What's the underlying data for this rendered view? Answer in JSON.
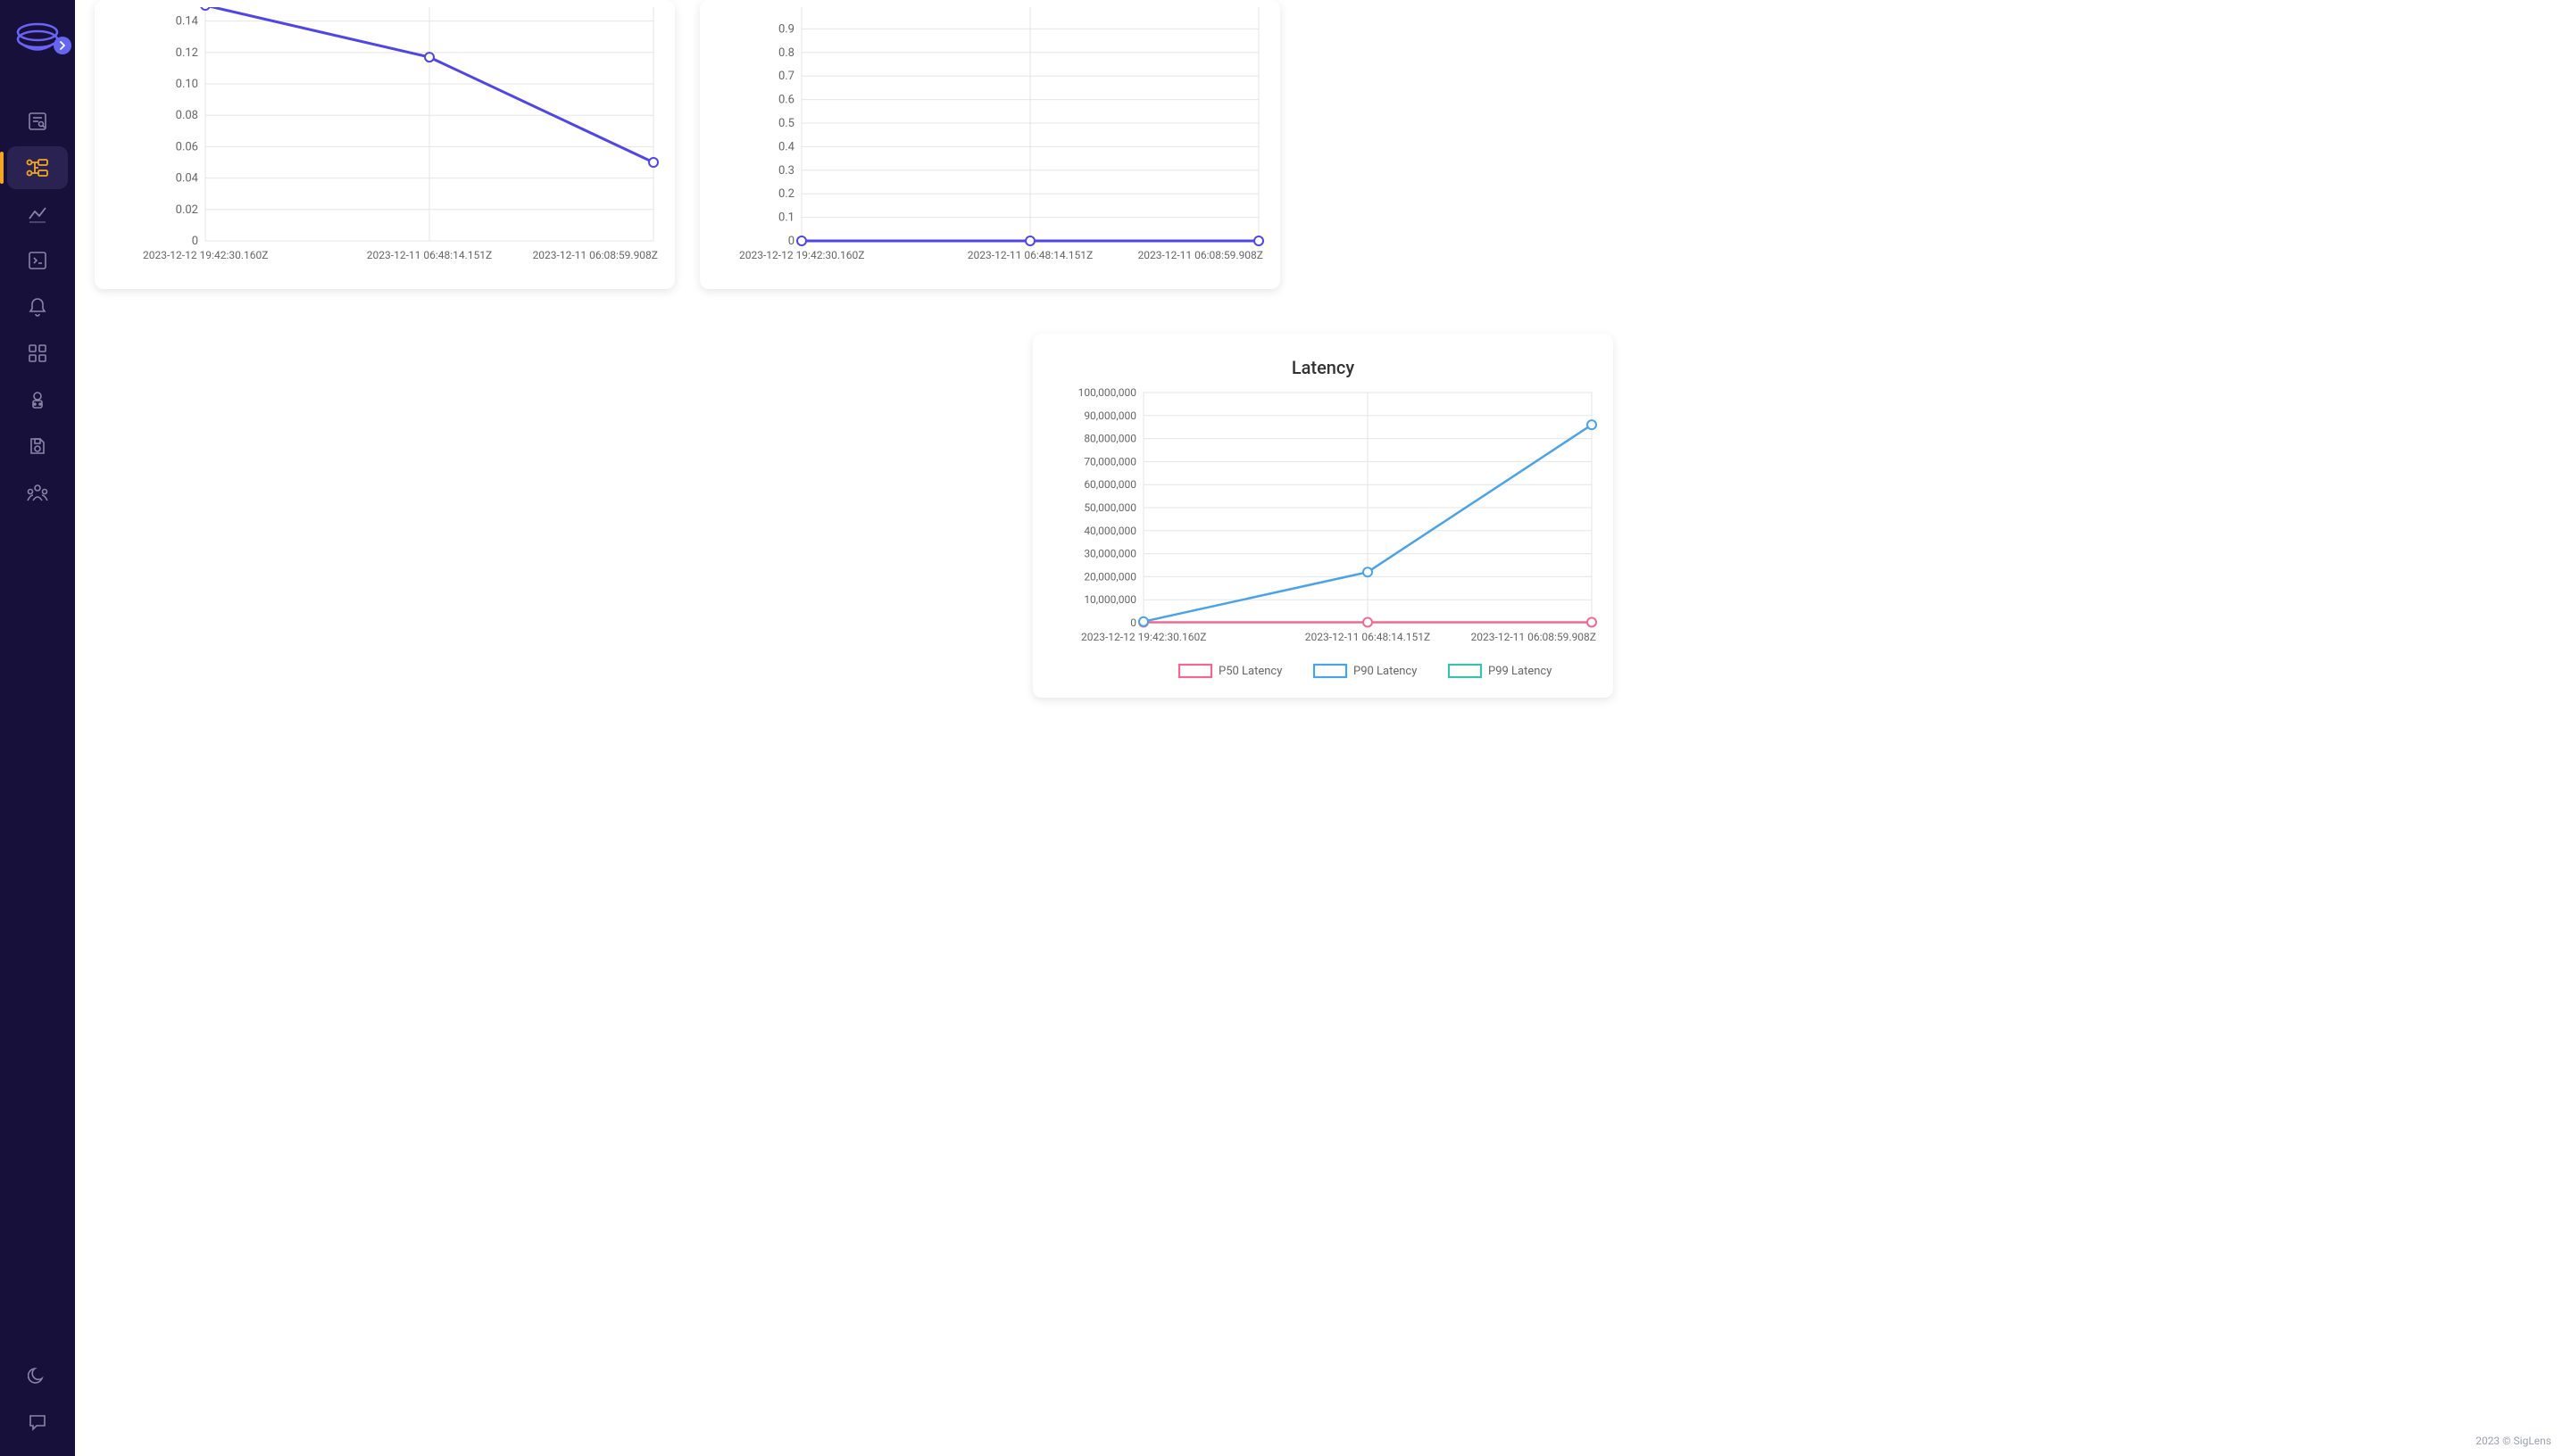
{
  "footer": "2023 © SigLens",
  "sidebar": {
    "items": [
      {
        "name": "search-icon"
      },
      {
        "name": "traces-icon"
      },
      {
        "name": "metrics-icon"
      },
      {
        "name": "logs-icon"
      },
      {
        "name": "alerts-icon"
      },
      {
        "name": "dashboards-icon"
      },
      {
        "name": "users-icon"
      },
      {
        "name": "storage-icon"
      },
      {
        "name": "org-icon"
      }
    ]
  },
  "chart1": {
    "type": "line",
    "line_color": "#5046e5",
    "marker_stroke": "#5046e5",
    "marker_fill": "#ffffff",
    "grid_color": "#e5e5e5",
    "border_color": "#d6d6d6",
    "line_width": 3,
    "marker_radius": 5,
    "x_labels": [
      "2023-12-12 19:42:30.160Z",
      "2023-12-11 06:48:14.151Z",
      "2023-12-11 06:08:59.908Z"
    ],
    "y_ticks": [
      0,
      0.02,
      0.04,
      0.06,
      0.08,
      0.1,
      0.12,
      0.14
    ],
    "y_tick_labels": [
      "0",
      "0.02",
      "0.04",
      "0.06",
      "0.08",
      "0.10",
      "0.12",
      "0.14"
    ],
    "ylim": [
      0,
      0.15
    ],
    "values": [
      0.15,
      0.117,
      0.05
    ],
    "label_fontsize": 13
  },
  "chart2": {
    "type": "line",
    "line_color": "#5046e5",
    "marker_stroke": "#5046e5",
    "marker_fill": "#ffffff",
    "grid_color": "#e5e5e5",
    "border_color": "#d6d6d6",
    "line_width": 3,
    "marker_radius": 5,
    "x_labels": [
      "2023-12-12 19:42:30.160Z",
      "2023-12-11 06:48:14.151Z",
      "2023-12-11 06:08:59.908Z"
    ],
    "y_ticks": [
      0,
      0.1,
      0.2,
      0.3,
      0.4,
      0.5,
      0.6,
      0.7,
      0.8,
      0.9
    ],
    "y_tick_labels": [
      "0",
      "0.1",
      "0.2",
      "0.3",
      "0.4",
      "0.5",
      "0.6",
      "0.7",
      "0.8",
      "0.9"
    ],
    "ylim": [
      0,
      1.0
    ],
    "values": [
      0,
      0,
      0
    ],
    "label_fontsize": 13
  },
  "chart3": {
    "type": "line",
    "title": "Latency",
    "grid_color": "#e5e5e5",
    "border_color": "#d6d6d6",
    "x_labels": [
      "2023-12-12 19:42:30.160Z",
      "2023-12-11 06:48:14.151Z",
      "2023-12-11 06:08:59.908Z"
    ],
    "y_ticks": [
      0,
      10000000,
      20000000,
      30000000,
      40000000,
      50000000,
      60000000,
      70000000,
      80000000,
      90000000,
      100000000
    ],
    "y_tick_labels": [
      "0",
      "10,000,000",
      "20,000,000",
      "30,000,000",
      "40,000,000",
      "50,000,000",
      "60,000,000",
      "70,000,000",
      "80,000,000",
      "90,000,000",
      "100,000,000"
    ],
    "ylim": [
      0,
      100000000
    ],
    "series": [
      {
        "name": "P50 Latency",
        "color": "#ef6a8e",
        "values": [
          200000,
          200000,
          200000
        ]
      },
      {
        "name": "P90 Latency",
        "color": "#4aa3e8",
        "values": [
          500000,
          22000000,
          86000000
        ]
      },
      {
        "name": "P99 Latency",
        "color": "#3fbfae",
        "values": null
      }
    ],
    "line_width": 2.5,
    "marker_radius": 5,
    "label_fontsize": 12,
    "legend": [
      "P50 Latency",
      "P90 Latency",
      "P99 Latency"
    ]
  }
}
